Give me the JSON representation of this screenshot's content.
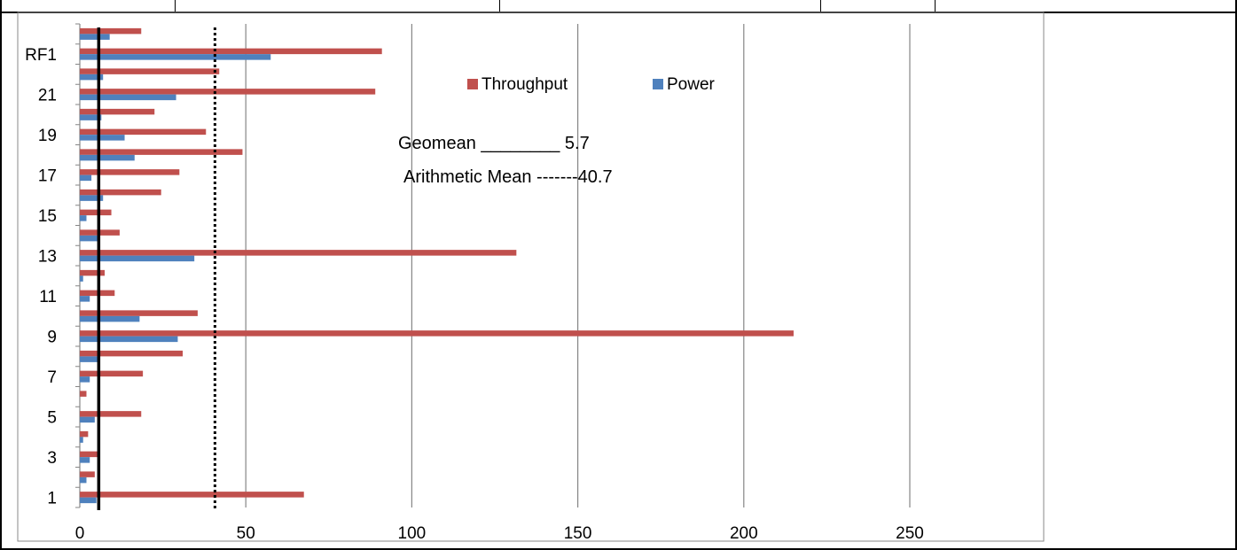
{
  "chart_data": {
    "type": "bar",
    "orientation": "horizontal",
    "categories": [
      "1",
      "2",
      "3",
      "4",
      "5",
      "6",
      "7",
      "8",
      "9",
      "10",
      "11",
      "12",
      "13",
      "14",
      "15",
      "16",
      "17",
      "18",
      "19",
      "20",
      "21",
      "22",
      "RF1",
      "24"
    ],
    "y_tick_labels": [
      "1",
      "3",
      "5",
      "7",
      "9",
      "11",
      "13",
      "15",
      "17",
      "19",
      "21",
      "RF1"
    ],
    "series": [
      {
        "name": "Throughput",
        "color": "#c0504d",
        "values": [
          67.5,
          4.5,
          6,
          2.5,
          18.5,
          2,
          19,
          31,
          215,
          35.5,
          10.5,
          7.5,
          131.5,
          12,
          9.5,
          24.5,
          30,
          49,
          38,
          22.5,
          89,
          42,
          91,
          18.5
        ]
      },
      {
        "name": "Power",
        "color": "#4f81bd",
        "values": [
          5,
          2,
          3,
          1,
          4.5,
          0,
          3,
          6,
          29.5,
          18,
          3,
          1,
          34.5,
          5.5,
          2,
          7,
          3.5,
          16.5,
          13.5,
          6.5,
          29,
          7,
          57.5,
          9
        ]
      }
    ],
    "xlim": [
      0,
      250
    ],
    "x_ticks": [
      0,
      50,
      100,
      150,
      200,
      250
    ],
    "grid": "vertical",
    "legend_position": "top-center",
    "reference_lines": [
      {
        "value": 5.7,
        "style": "solid"
      },
      {
        "value": 40.7,
        "style": "dotted"
      }
    ],
    "annotations": [
      "Geomean ________ 5.7",
      "Arithmetic Mean -------40.7"
    ]
  }
}
